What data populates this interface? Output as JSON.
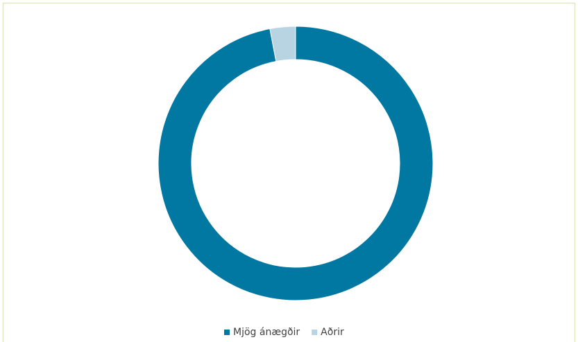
{
  "chart_data": {
    "type": "pie",
    "donut": true,
    "categories": [
      "Mjög ánægðir",
      "Aðrir"
    ],
    "values": [
      97,
      3
    ],
    "colors": [
      "#0078a2",
      "#b8d4e2"
    ],
    "legend": "bottom"
  }
}
